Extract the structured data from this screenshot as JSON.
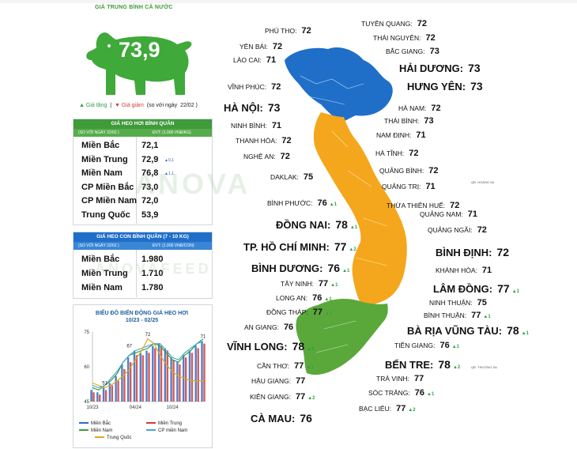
{
  "header": {
    "title": "GIÁ TRUNG BÌNH CẢ NƯỚC"
  },
  "pig": {
    "value": "73,9"
  },
  "legend": {
    "up": "▲ Giá tăng",
    "sep": "|",
    "down": "▼ Giá giảm",
    "note": "(so với ngày",
    "date": "22/02 )"
  },
  "table1": {
    "title": "GIÁ HEO HƠI BÌNH QUÂN",
    "sub_left": "(SO VỚI NGÀY 22/02 )",
    "sub_right": "ĐVT: (1.000 VNĐ/KG)",
    "rows": [
      {
        "label": "Miền Bắc",
        "value": "72,1",
        "change": ""
      },
      {
        "label": "Miền Trung",
        "value": "72,9",
        "change": "▲0,1"
      },
      {
        "label": "Miền Nam",
        "value": "76,8",
        "change": "▲1,1"
      },
      {
        "label": "CP Miền Bắc",
        "value": "73,0",
        "change": ""
      },
      {
        "label": "CP Miền Nam",
        "value": "72,0",
        "change": ""
      },
      {
        "label": "Trung Quốc",
        "value": "53,9",
        "change": ""
      }
    ]
  },
  "table2": {
    "title": "GIÁ HEO CON BÌNH QUÂN (7 - 10 KG)",
    "sub_left": "(SO VỚI NGÀY 22/02 )",
    "sub_right": "ĐVT: (1.000 VNĐ/CON)",
    "rows": [
      {
        "label": "Miền Bắc",
        "value": "1.980"
      },
      {
        "label": "Miền Trung",
        "value": "1.710"
      },
      {
        "label": "Miền Nam",
        "value": "1.780"
      }
    ]
  },
  "watermark": {
    "text": "ANOVA",
    "text2": "ANOVAFEED"
  },
  "chart_data": {
    "type": "line",
    "title": "BIỂU ĐỒ BIẾN ĐỘNG GIÁ HEO HƠI",
    "subtitle": "10/23 - 02/25",
    "ylim": [
      45,
      75
    ],
    "yticks": [
      "75",
      "60",
      "45"
    ],
    "xticks": [
      "10/23",
      "04/24",
      "10/24"
    ],
    "annotations": [
      "51",
      "67",
      "72",
      "71"
    ],
    "legend_position": "bottom",
    "series": [
      {
        "name": "Miền Bắc",
        "color": "#2b6cc4",
        "values": [
          50,
          49,
          51,
          53,
          56,
          61,
          64,
          67,
          66,
          67,
          69,
          70,
          68,
          64,
          62,
          65,
          67,
          69,
          71
        ]
      },
      {
        "name": "Miền Trung",
        "color": "#d23b3b",
        "values": [
          49,
          48,
          50,
          52,
          54,
          59,
          62,
          65,
          65,
          66,
          68,
          69,
          67,
          63,
          61,
          64,
          66,
          68,
          70
        ]
      },
      {
        "name": "Miền Nam",
        "color": "#3c9e3c",
        "values": [
          51,
          50,
          52,
          54,
          57,
          62,
          65,
          66,
          67,
          68,
          70,
          69,
          66,
          63,
          62,
          65,
          67,
          70,
          72
        ]
      },
      {
        "name": "CP miền Nam",
        "color": "#47a5d8",
        "values": [
          52,
          51,
          52,
          55,
          58,
          62,
          65,
          67,
          68,
          69,
          70,
          70,
          67,
          64,
          63,
          66,
          68,
          70,
          71
        ]
      },
      {
        "name": "Trung Quốc",
        "color": "#e0a820",
        "values": [
          53,
          52,
          51,
          52,
          54,
          56,
          59,
          63,
          67,
          72,
          70,
          65,
          61,
          58,
          56,
          55,
          54,
          54,
          54
        ]
      }
    ]
  },
  "map": {
    "provinces": [
      {
        "name": "PHÚ THỌ:",
        "value": "72",
        "change": ""
      },
      {
        "name": "TUYÊN QUANG:",
        "value": "72",
        "change": ""
      },
      {
        "name": "YÊN BÁI:",
        "value": "72",
        "change": ""
      },
      {
        "name": "THÁI NGUYÊN:",
        "value": "72",
        "change": ""
      },
      {
        "name": "LÀO CAI:",
        "value": "71",
        "change": ""
      },
      {
        "name": "BẮC GIANG:",
        "value": "73",
        "change": ""
      },
      {
        "name": "HẢI DƯƠNG:",
        "value": "73",
        "change": ""
      },
      {
        "name": "VĨNH PHÚC:",
        "value": "72",
        "change": ""
      },
      {
        "name": "HƯNG YÊN:",
        "value": "73",
        "change": ""
      },
      {
        "name": "HÀ NỘI:",
        "value": "73",
        "change": ""
      },
      {
        "name": "HÀ NAM:",
        "value": "72",
        "change": ""
      },
      {
        "name": "NINH BÌNH:",
        "value": "71",
        "change": ""
      },
      {
        "name": "THÁI BÌNH:",
        "value": "73",
        "change": ""
      },
      {
        "name": "THANH HÓA:",
        "value": "72",
        "change": ""
      },
      {
        "name": "NAM ĐỊNH:",
        "value": "71",
        "change": ""
      },
      {
        "name": "NGHỆ AN:",
        "value": "72",
        "change": ""
      },
      {
        "name": "HÀ TĨNH:",
        "value": "72",
        "change": ""
      },
      {
        "name": "QUẢNG BÌNH:",
        "value": "72",
        "change": ""
      },
      {
        "name": "DAKLAK:",
        "value": "75",
        "change": ""
      },
      {
        "name": "QUẢNG TRỊ:",
        "value": "71",
        "change": ""
      },
      {
        "name": "BÌNH PHƯỚC:",
        "value": "76",
        "change": "▲1"
      },
      {
        "name": "THỪA THIÊN HUẾ:",
        "value": "72",
        "change": ""
      },
      {
        "name": "QUẢNG NAM:",
        "value": "71",
        "change": ""
      },
      {
        "name": "ĐỒNG NAI:",
        "value": "78",
        "change": "▲1"
      },
      {
        "name": "QUẢNG NGÃI:",
        "value": "72",
        "change": ""
      },
      {
        "name": "TP. HỒ CHÍ MINH:",
        "value": "77",
        "change": "▲2"
      },
      {
        "name": "BÌNH ĐỊNH:",
        "value": "72",
        "change": ""
      },
      {
        "name": "BÌNH DƯƠNG:",
        "value": "76",
        "change": "▲1"
      },
      {
        "name": "KHÁNH HÒA:",
        "value": "71",
        "change": ""
      },
      {
        "name": "TÂY NINH:",
        "value": "77",
        "change": "▲1"
      },
      {
        "name": "LÂM ĐỒNG:",
        "value": "77",
        "change": "▲1"
      },
      {
        "name": "LONG AN:",
        "value": "76",
        "change": "▲1"
      },
      {
        "name": "NINH THUẬN:",
        "value": "75",
        "change": ""
      },
      {
        "name": "ĐỒNG THÁP:",
        "value": "77",
        "change": "▲1"
      },
      {
        "name": "BÌNH THUẬN:",
        "value": "77",
        "change": "▲1"
      },
      {
        "name": "AN GIANG:",
        "value": "76",
        "change": ""
      },
      {
        "name": "BÀ RỊA VŨNG TÀU:",
        "value": "78",
        "change": "▲1"
      },
      {
        "name": "VĨNH LONG:",
        "value": "78",
        "change": "▲2"
      },
      {
        "name": "TIỀN GIANG:",
        "value": "76",
        "change": "▲1"
      },
      {
        "name": "CẦN THƠ:",
        "value": "77",
        "change": "▲1"
      },
      {
        "name": "BẾN TRE:",
        "value": "78",
        "change": "▲2"
      },
      {
        "name": "HẬU GIANG:",
        "value": "77",
        "change": ""
      },
      {
        "name": "TRÀ VINH:",
        "value": "77",
        "change": ""
      },
      {
        "name": "KIÊN GIANG:",
        "value": "77",
        "change": "▲2"
      },
      {
        "name": "SÓC TRĂNG:",
        "value": "76",
        "change": "▲1"
      },
      {
        "name": "BẠC LIÊU:",
        "value": "77",
        "change": "▲2"
      },
      {
        "name": "CÀ MAU:",
        "value": "76",
        "change": ""
      }
    ],
    "islands": [
      "QĐ. HOÀNG SA",
      "QĐ. TRƯỜNG SA"
    ],
    "colors": {
      "north": "#1f6fc9",
      "central": "#f4a71c",
      "south": "#5aa83a"
    }
  }
}
